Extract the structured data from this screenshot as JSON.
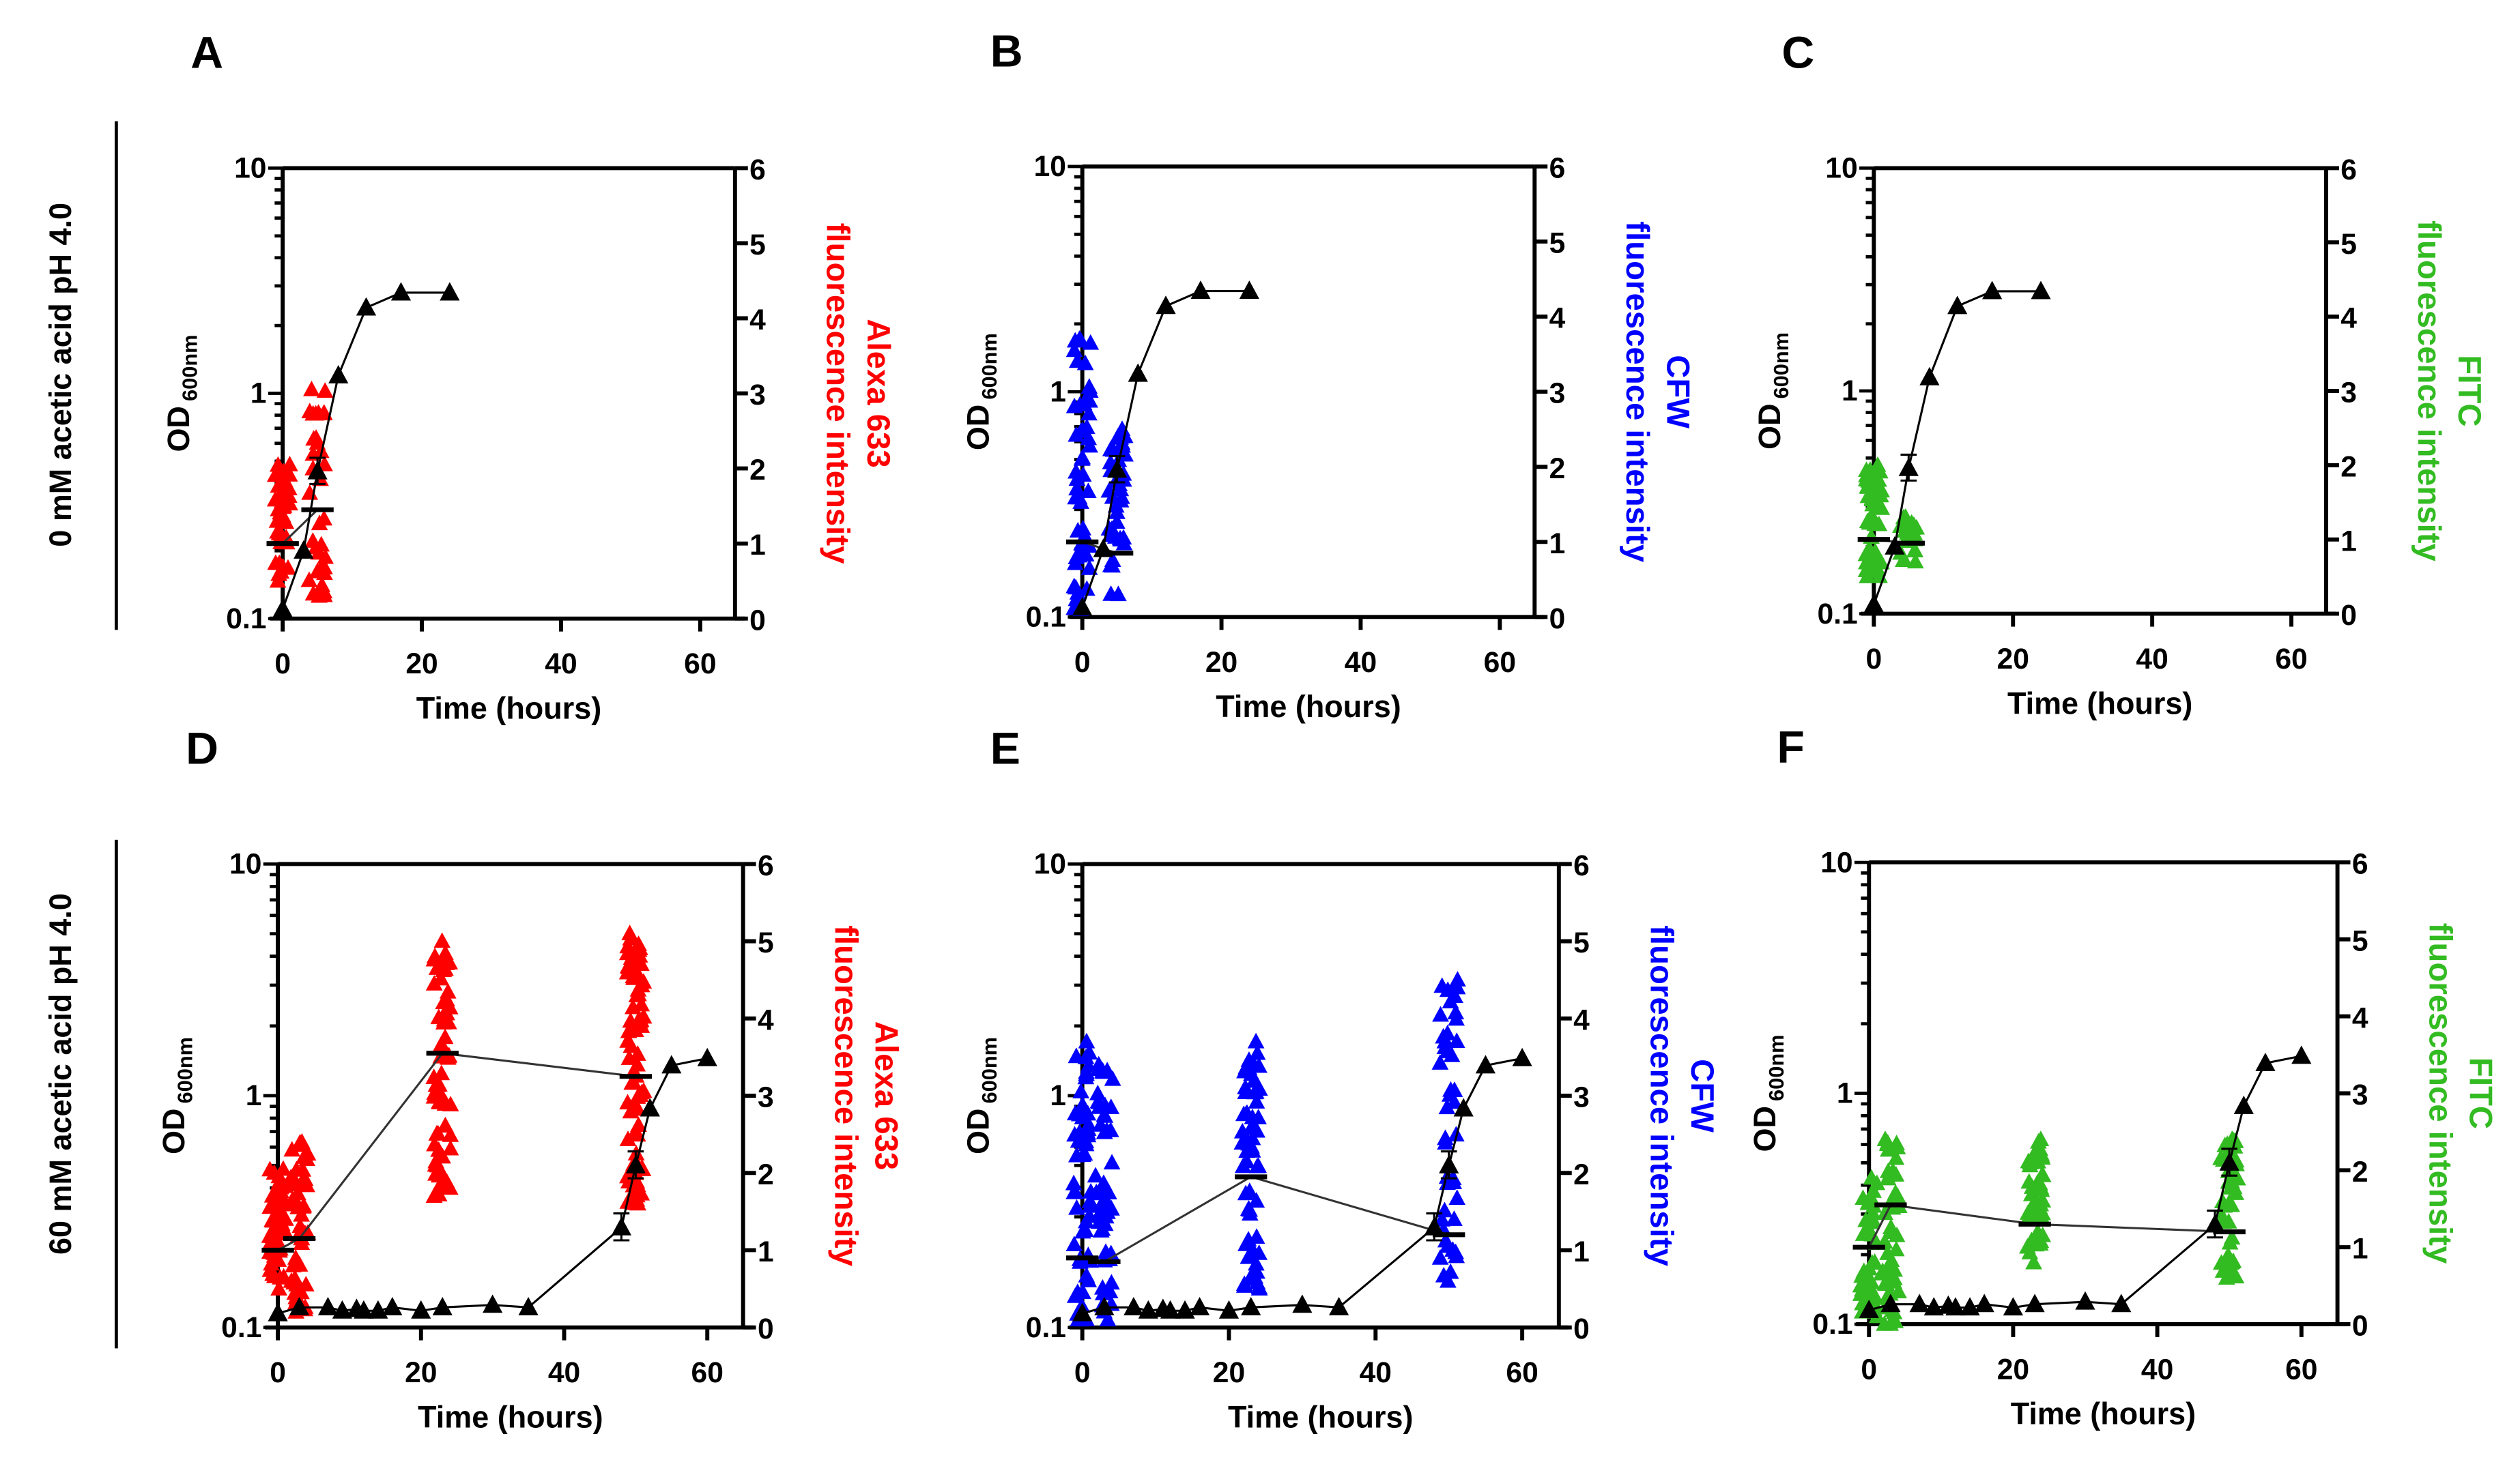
{
  "row_labels": [
    "0 mM acetic acid pH 4.0",
    "60 mM acetic acid pH 4.0"
  ],
  "colors": {
    "axis": "#000000",
    "red": "#ff0000",
    "blue": "#0000ff",
    "green": "#33bb22"
  },
  "chart_data": [
    {
      "panel": "A",
      "row": 0,
      "type": "scatter",
      "color": "red",
      "dye": "Alexa 633",
      "xlabel": "Time (hours)",
      "ylabel": "OD",
      "ylabel_sub": "600nm",
      "y2label": "fluorescence intensity",
      "xlim": [
        0,
        65
      ],
      "ylim": [
        0.1,
        10
      ],
      "yscale": "log",
      "y2lim": [
        0,
        6
      ],
      "xticks": [
        "0",
        "20",
        "40",
        "60"
      ],
      "yticks": [
        "0.1",
        "1",
        "10"
      ],
      "y2ticks": [
        "0",
        "1",
        "2",
        "3",
        "4",
        "5",
        "6"
      ],
      "od": {
        "x": [
          0,
          3,
          5,
          8,
          12,
          17,
          24
        ],
        "y": [
          0.11,
          0.2,
          0.45,
          1.2,
          2.4,
          2.8,
          2.8
        ]
      },
      "fluorescence": [
        {
          "t": 0,
          "mean": 1.0,
          "min": 0.5,
          "max": 2.05,
          "n": 45
        },
        {
          "t": 5,
          "mean": 1.45,
          "min": 0.3,
          "max": 3.05,
          "n": 35
        }
      ]
    },
    {
      "panel": "B",
      "row": 0,
      "type": "scatter",
      "color": "blue",
      "dye": "CFW",
      "xlabel": "Time (hours)",
      "ylabel": "OD",
      "ylabel_sub": "600nm",
      "y2label": "fluorescence intensity",
      "xlim": [
        0,
        65
      ],
      "ylim": [
        0.1,
        10
      ],
      "yscale": "log",
      "y2lim": [
        0,
        6
      ],
      "xticks": [
        "0",
        "20",
        "40",
        "60"
      ],
      "yticks": [
        "0.1",
        "1",
        "10"
      ],
      "y2ticks": [
        "0",
        "1",
        "2",
        "3",
        "4",
        "5",
        "6"
      ],
      "od": {
        "x": [
          0,
          3,
          5,
          8,
          12,
          17,
          24
        ],
        "y": [
          0.11,
          0.2,
          0.45,
          1.2,
          2.4,
          2.8,
          2.8
        ]
      },
      "fluorescence": [
        {
          "t": 0,
          "mean": 1.0,
          "min": 0.1,
          "max": 3.7,
          "n": 50
        },
        {
          "t": 5,
          "mean": 0.85,
          "min": 0.3,
          "max": 2.5,
          "n": 40
        }
      ]
    },
    {
      "panel": "C",
      "row": 0,
      "type": "scatter",
      "color": "green",
      "dye": "FITC",
      "xlabel": "Time (hours)",
      "ylabel": "OD",
      "ylabel_sub": "600nm",
      "y2label": "fluorescence intensity",
      "xlim": [
        0,
        65
      ],
      "ylim": [
        0.1,
        10
      ],
      "yscale": "log",
      "y2lim": [
        0,
        6
      ],
      "xticks": [
        "0",
        "20",
        "40",
        "60"
      ],
      "yticks": [
        "0.1",
        "1",
        "10"
      ],
      "y2ticks": [
        "0",
        "1",
        "2",
        "3",
        "4",
        "5",
        "6"
      ],
      "od": {
        "x": [
          0,
          3,
          5,
          8,
          12,
          17,
          24
        ],
        "y": [
          0.11,
          0.2,
          0.45,
          1.15,
          2.4,
          2.8,
          2.8
        ]
      },
      "fluorescence": [
        {
          "t": 0,
          "mean": 1.0,
          "min": 0.5,
          "max": 2.0,
          "n": 45
        },
        {
          "t": 5,
          "mean": 0.95,
          "min": 0.7,
          "max": 1.3,
          "n": 25
        }
      ]
    },
    {
      "panel": "D",
      "row": 1,
      "type": "scatter",
      "color": "red",
      "dye": "Alexa 633",
      "xlabel": "Time (hours)",
      "ylabel": "OD",
      "ylabel_sub": "600nm",
      "y2label": "fluorescence intensity",
      "xlim": [
        0,
        65
      ],
      "ylim": [
        0.1,
        10
      ],
      "yscale": "log",
      "y2lim": [
        0,
        6
      ],
      "xticks": [
        "0",
        "20",
        "40",
        "60"
      ],
      "yticks": [
        "0.1",
        "1",
        "10"
      ],
      "y2ticks": [
        "0",
        "1",
        "2",
        "3",
        "4",
        "5",
        "6"
      ],
      "od": {
        "x": [
          0,
          3,
          7,
          9,
          11,
          12,
          14,
          16,
          20,
          23,
          30,
          35,
          48,
          50,
          52,
          55,
          60
        ],
        "y": [
          0.115,
          0.122,
          0.122,
          0.118,
          0.12,
          0.118,
          0.118,
          0.122,
          0.118,
          0.122,
          0.125,
          0.122,
          0.27,
          0.5,
          0.88,
          1.35,
          1.45
        ]
      },
      "fluorescence": [
        {
          "t": 0,
          "mean": 1.0,
          "min": 0.5,
          "max": 2.05,
          "n": 50
        },
        {
          "t": 3,
          "mean": 1.15,
          "min": 0.2,
          "max": 2.4,
          "n": 50
        },
        {
          "t": 23,
          "mean": 3.55,
          "min": 1.7,
          "max": 5.0,
          "n": 70
        },
        {
          "t": 50,
          "mean": 3.25,
          "min": 1.6,
          "max": 5.1,
          "n": 80
        }
      ]
    },
    {
      "panel": "E",
      "row": 1,
      "type": "scatter",
      "color": "blue",
      "dye": "CFW",
      "xlabel": "Time (hours)",
      "ylabel": "OD",
      "ylabel_sub": "600nm",
      "y2label": "fluorescence intensity",
      "xlim": [
        0,
        65
      ],
      "ylim": [
        0.1,
        10
      ],
      "yscale": "log",
      "y2lim": [
        0,
        6
      ],
      "xticks": [
        "0",
        "20",
        "40",
        "60"
      ],
      "yticks": [
        "0.1",
        "1",
        "10"
      ],
      "y2ticks": [
        "0",
        "1",
        "2",
        "3",
        "4",
        "5",
        "6"
      ],
      "od": {
        "x": [
          0,
          3,
          7,
          9,
          11,
          12,
          14,
          16,
          20,
          23,
          30,
          35,
          48,
          50,
          52,
          55,
          60
        ],
        "y": [
          0.115,
          0.122,
          0.122,
          0.118,
          0.12,
          0.118,
          0.118,
          0.122,
          0.118,
          0.122,
          0.125,
          0.122,
          0.27,
          0.5,
          0.88,
          1.35,
          1.45
        ]
      },
      "fluorescence": [
        {
          "t": 0,
          "mean": 0.9,
          "min": 0.1,
          "max": 3.7,
          "n": 55
        },
        {
          "t": 3,
          "mean": 0.85,
          "min": 0.1,
          "max": 3.4,
          "n": 50
        },
        {
          "t": 23,
          "mean": 1.95,
          "min": 0.5,
          "max": 3.7,
          "n": 60
        },
        {
          "t": 50,
          "mean": 1.2,
          "min": 0.6,
          "max": 4.5,
          "n": 45
        }
      ]
    },
    {
      "panel": "F",
      "row": 1,
      "type": "scatter",
      "color": "green",
      "dye": "FITC",
      "xlabel": "Time (hours)",
      "ylabel": "OD",
      "ylabel_sub": "600nm",
      "y2label": "fluorescence intensity",
      "xlim": [
        0,
        65
      ],
      "ylim": [
        0.1,
        10
      ],
      "yscale": "log",
      "y2lim": [
        0,
        6
      ],
      "xticks": [
        "0",
        "20",
        "40",
        "60"
      ],
      "yticks": [
        "0.1",
        "1",
        "10"
      ],
      "y2ticks": [
        "0",
        "1",
        "2",
        "3",
        "4",
        "5",
        "6"
      ],
      "od": {
        "x": [
          0,
          3,
          7,
          9,
          11,
          12,
          14,
          16,
          20,
          23,
          30,
          35,
          48,
          50,
          52,
          55,
          60
        ],
        "y": [
          0.115,
          0.122,
          0.122,
          0.118,
          0.12,
          0.118,
          0.118,
          0.122,
          0.118,
          0.122,
          0.125,
          0.122,
          0.27,
          0.5,
          0.88,
          1.35,
          1.45
        ]
      },
      "fluorescence": [
        {
          "t": 0,
          "mean": 1.0,
          "min": 0.1,
          "max": 1.9,
          "n": 45
        },
        {
          "t": 3,
          "mean": 1.55,
          "min": 0.0,
          "max": 2.4,
          "n": 45
        },
        {
          "t": 23,
          "mean": 1.3,
          "min": 0.8,
          "max": 2.4,
          "n": 45
        },
        {
          "t": 50,
          "mean": 1.2,
          "min": 0.6,
          "max": 2.4,
          "n": 45
        }
      ]
    }
  ]
}
